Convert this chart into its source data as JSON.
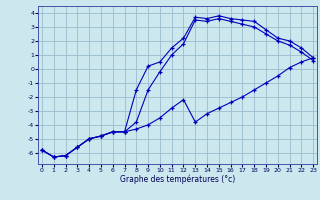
{
  "xlabel": "Graphe des températures (°c)",
  "background_color": "#cce8ee",
  "grid_color": "#99bbcc",
  "line_color": "#0000bb",
  "ylim": [
    -6.8,
    4.5
  ],
  "xlim": [
    -0.3,
    23.3
  ],
  "yticks": [
    -6,
    -5,
    -4,
    -3,
    -2,
    -1,
    0,
    1,
    2,
    3,
    4
  ],
  "xticks": [
    0,
    1,
    2,
    3,
    4,
    5,
    6,
    7,
    8,
    9,
    10,
    11,
    12,
    13,
    14,
    15,
    16,
    17,
    18,
    19,
    20,
    21,
    22,
    23
  ],
  "line1_y": [
    -5.8,
    -6.3,
    -6.2,
    -5.6,
    -5.0,
    -4.8,
    -4.5,
    -4.5,
    -1.5,
    0.2,
    0.5,
    1.5,
    2.2,
    3.7,
    3.6,
    3.8,
    3.6,
    3.5,
    3.4,
    2.8,
    2.2,
    2.0,
    1.5,
    0.8
  ],
  "line2_y": [
    -5.8,
    -6.3,
    -6.2,
    -5.6,
    -5.0,
    -4.8,
    -4.5,
    -4.5,
    -4.3,
    -4.0,
    -3.5,
    -2.8,
    -2.2,
    -3.8,
    -3.2,
    -2.8,
    -2.4,
    -2.0,
    -1.5,
    -1.0,
    -0.5,
    0.1,
    0.5,
    0.8
  ],
  "line3_y": [
    -5.8,
    -6.3,
    -6.2,
    -5.6,
    -5.0,
    -4.8,
    -4.5,
    -4.5,
    -3.8,
    -1.5,
    -0.2,
    1.0,
    1.8,
    3.5,
    3.4,
    3.6,
    3.4,
    3.2,
    3.0,
    2.5,
    2.0,
    1.7,
    1.2,
    0.6
  ]
}
